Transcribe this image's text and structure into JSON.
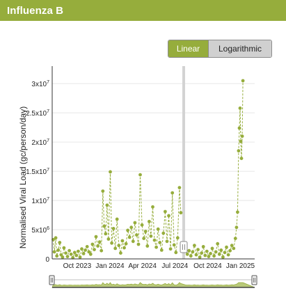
{
  "header": {
    "title": "Influenza B"
  },
  "scale_toggle": {
    "linear_label": "Linear",
    "log_label": "Logarithmic",
    "selected": "Linear"
  },
  "colors": {
    "accent": "#96ad3c",
    "series": "#96ad3c",
    "highlight_band": "#d3d3d3",
    "toggle_off": "#d0d0d0"
  },
  "chart_data": {
    "type": "scatter",
    "title": "",
    "xlabel": "",
    "ylabel": "Normalised Viral Load (gc/person/day)",
    "yscale": "linear",
    "ylim": [
      0,
      33000000
    ],
    "xlim": [
      "2023-07-23",
      "2025-02-10"
    ],
    "grid": true,
    "y_ticks": [
      {
        "value": 0,
        "base": "0",
        "exp": ""
      },
      {
        "value": 5000000,
        "base": "5x10",
        "exp": "6"
      },
      {
        "value": 10000000,
        "base": "1x10",
        "exp": "7"
      },
      {
        "value": 15000000,
        "base": "1.5x10",
        "exp": "7"
      },
      {
        "value": 20000000,
        "base": "2x10",
        "exp": "7"
      },
      {
        "value": 25000000,
        "base": "2.5x10",
        "exp": "7"
      },
      {
        "value": 30000000,
        "base": "3x10",
        "exp": "7"
      }
    ],
    "x_ticks": [
      {
        "date": "2023-10-01",
        "label": "Oct 2023"
      },
      {
        "date": "2024-01-01",
        "label": "Jan 2024"
      },
      {
        "date": "2024-04-01",
        "label": "Apr 2024"
      },
      {
        "date": "2024-07-01",
        "label": "Jul 2024"
      },
      {
        "date": "2024-10-01",
        "label": "Oct 2024"
      },
      {
        "date": "2025-01-01",
        "label": "Jan 2025"
      }
    ],
    "highlight_band": {
      "from": "2024-07-22",
      "to": "2024-07-29"
    },
    "series": [
      {
        "points": [
          [
            "2023-07-26",
            3300000
          ],
          [
            "2023-07-29",
            1200000
          ],
          [
            "2023-08-02",
            3600000
          ],
          [
            "2023-08-05",
            500000
          ],
          [
            "2023-08-09",
            1500000
          ],
          [
            "2023-08-13",
            2800000
          ],
          [
            "2023-08-17",
            700000
          ],
          [
            "2023-08-21",
            300000
          ],
          [
            "2023-08-25",
            1900000
          ],
          [
            "2023-08-30",
            1000000
          ],
          [
            "2023-09-04",
            400000
          ],
          [
            "2023-09-09",
            1400000
          ],
          [
            "2023-09-14",
            800000
          ],
          [
            "2023-09-19",
            200000
          ],
          [
            "2023-09-24",
            1100000
          ],
          [
            "2023-09-29",
            600000
          ],
          [
            "2023-10-04",
            1300000
          ],
          [
            "2023-10-09",
            300000
          ],
          [
            "2023-10-14",
            1700000
          ],
          [
            "2023-10-19",
            900000
          ],
          [
            "2023-10-24",
            1500000
          ],
          [
            "2023-10-29",
            2100000
          ],
          [
            "2023-11-03",
            1200000
          ],
          [
            "2023-11-08",
            800000
          ],
          [
            "2023-11-13",
            2500000
          ],
          [
            "2023-11-18",
            1600000
          ],
          [
            "2023-11-23",
            3800000
          ],
          [
            "2023-11-28",
            2200000
          ],
          [
            "2023-12-03",
            2900000
          ],
          [
            "2023-12-08",
            1400000
          ],
          [
            "2023-12-12",
            11600000
          ],
          [
            "2023-12-16",
            5600000
          ],
          [
            "2023-12-20",
            4300000
          ],
          [
            "2023-12-24",
            9200000
          ],
          [
            "2023-12-28",
            3400000
          ],
          [
            "2024-01-02",
            14900000
          ],
          [
            "2024-01-06",
            2700000
          ],
          [
            "2024-01-11",
            5200000
          ],
          [
            "2024-01-16",
            1800000
          ],
          [
            "2024-01-21",
            6800000
          ],
          [
            "2024-01-26",
            2300000
          ],
          [
            "2024-01-31",
            1000000
          ],
          [
            "2024-02-05",
            3100000
          ],
          [
            "2024-02-10",
            1900000
          ],
          [
            "2024-02-15",
            2600000
          ],
          [
            "2024-02-20",
            4900000
          ],
          [
            "2024-02-25",
            3700000
          ],
          [
            "2024-03-01",
            5400000
          ],
          [
            "2024-03-06",
            3000000
          ],
          [
            "2024-03-11",
            6200000
          ],
          [
            "2024-03-16",
            4100000
          ],
          [
            "2024-03-21",
            2500000
          ],
          [
            "2024-03-26",
            14400000
          ],
          [
            "2024-03-31",
            5800000
          ],
          [
            "2024-04-05",
            3500000
          ],
          [
            "2024-04-10",
            4700000
          ],
          [
            "2024-04-15",
            2200000
          ],
          [
            "2024-04-20",
            6400000
          ],
          [
            "2024-04-25",
            3900000
          ],
          [
            "2024-04-30",
            8900000
          ],
          [
            "2024-05-05",
            3200000
          ],
          [
            "2024-05-10",
            2000000
          ],
          [
            "2024-05-15",
            5100000
          ],
          [
            "2024-05-20",
            2800000
          ],
          [
            "2024-05-25",
            1500000
          ],
          [
            "2024-05-30",
            4400000
          ],
          [
            "2024-06-04",
            8100000
          ],
          [
            "2024-06-09",
            3000000
          ],
          [
            "2024-06-14",
            7400000
          ],
          [
            "2024-06-19",
            1700000
          ],
          [
            "2024-06-24",
            11300000
          ],
          [
            "2024-06-29",
            2400000
          ],
          [
            "2024-07-04",
            1100000
          ],
          [
            "2024-07-09",
            3600000
          ],
          [
            "2024-07-14",
            12200000
          ],
          [
            "2024-07-18",
            7900000
          ],
          [
            "2024-07-31",
            1900000
          ],
          [
            "2024-08-05",
            800000
          ],
          [
            "2024-08-10",
            1400000
          ],
          [
            "2024-08-15",
            500000
          ],
          [
            "2024-08-20",
            1200000
          ],
          [
            "2024-08-25",
            2300000
          ],
          [
            "2024-08-30",
            700000
          ],
          [
            "2024-09-04",
            1600000
          ],
          [
            "2024-09-09",
            300000
          ],
          [
            "2024-09-14",
            1000000
          ],
          [
            "2024-09-19",
            2100000
          ],
          [
            "2024-09-24",
            600000
          ],
          [
            "2024-09-29",
            1300000
          ],
          [
            "2024-10-04",
            400000
          ],
          [
            "2024-10-09",
            900000
          ],
          [
            "2024-10-14",
            1800000
          ],
          [
            "2024-10-19",
            500000
          ],
          [
            "2024-10-24",
            1200000
          ],
          [
            "2024-10-29",
            2600000
          ],
          [
            "2024-11-03",
            800000
          ],
          [
            "2024-11-08",
            1500000
          ],
          [
            "2024-11-13",
            300000
          ],
          [
            "2024-11-18",
            1100000
          ],
          [
            "2024-11-23",
            2000000
          ],
          [
            "2024-11-28",
            700000
          ],
          [
            "2024-12-03",
            1400000
          ],
          [
            "2024-12-08",
            2300000
          ],
          [
            "2024-12-13",
            1800000
          ],
          [
            "2024-12-18",
            3500000
          ],
          [
            "2024-12-21",
            5400000
          ],
          [
            "2024-12-24",
            8000000
          ],
          [
            "2024-12-27",
            18500000
          ],
          [
            "2024-12-29",
            22400000
          ],
          [
            "2024-12-31",
            25800000
          ],
          [
            "2025-01-02",
            20100000
          ],
          [
            "2025-01-04",
            17200000
          ],
          [
            "2025-01-06",
            21000000
          ],
          [
            "2025-01-08",
            30500000
          ]
        ]
      }
    ]
  }
}
